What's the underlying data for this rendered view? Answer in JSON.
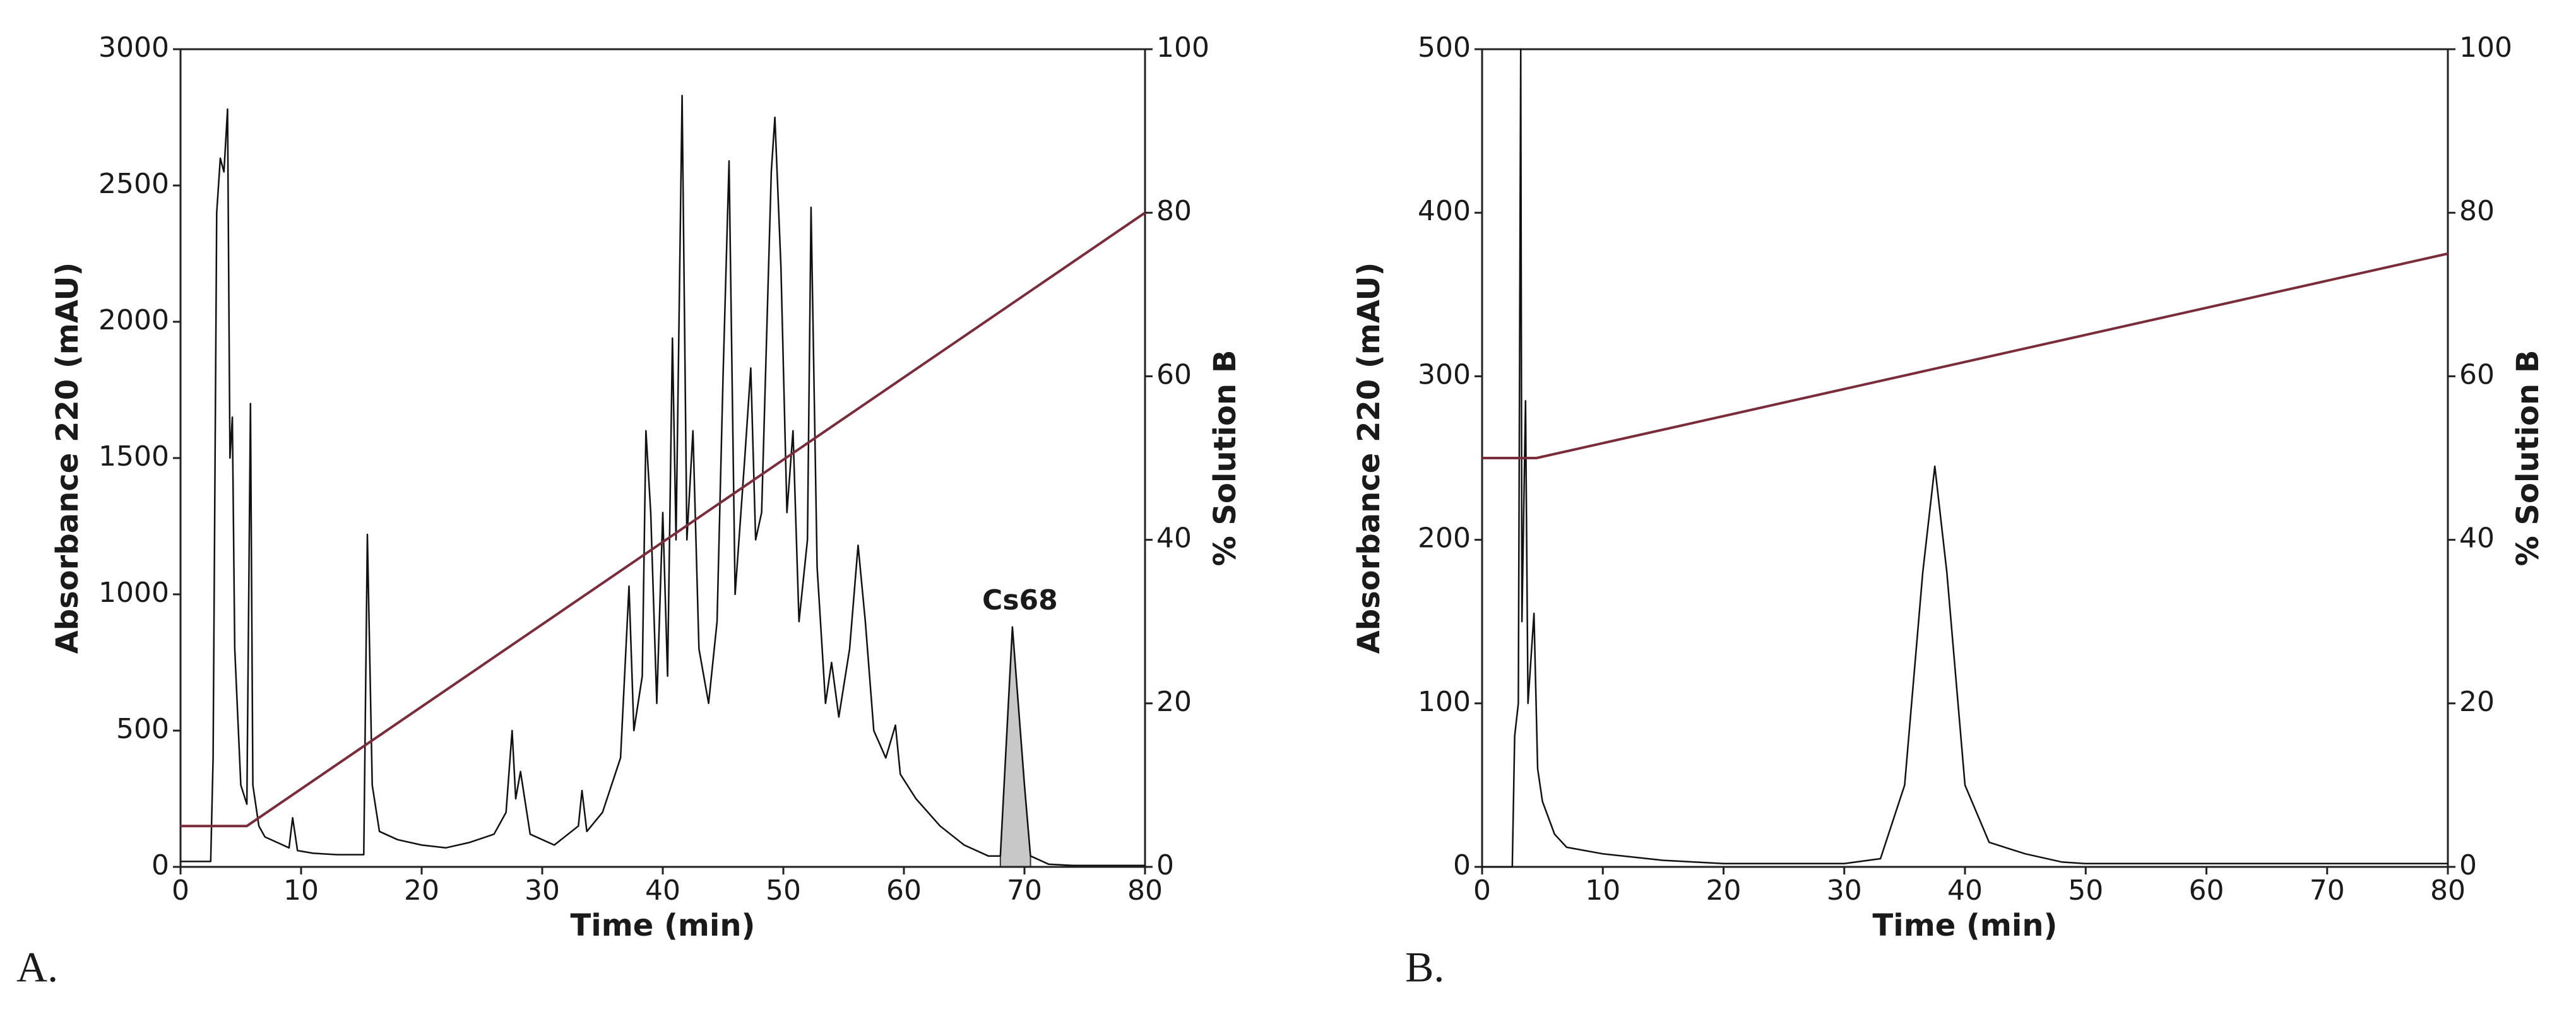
{
  "chart_data": [
    {
      "type": "line",
      "panel_label": "A.",
      "xlabel": "Time (min)",
      "ylabel": "Absorbance 220 (mAU)",
      "y2label": "% Solution B",
      "xlim": [
        0,
        80
      ],
      "xticks": [
        0,
        10,
        20,
        30,
        40,
        50,
        60,
        70,
        80
      ],
      "ylim": [
        0,
        3000
      ],
      "yticks": [
        0,
        500,
        1000,
        1500,
        2000,
        2500,
        3000
      ],
      "y2lim": [
        0,
        100
      ],
      "y2ticks": [
        0,
        20,
        40,
        60,
        80,
        100
      ],
      "peak_label": "Cs68",
      "shaded_range": [
        68,
        70.5
      ],
      "shade_color": "#c8c8c8",
      "series": [
        {
          "color": "#111111",
          "x": [
            0,
            2.5,
            2.7,
            3.0,
            3.3,
            3.6,
            3.9,
            4.1,
            4.3,
            4.5,
            5.0,
            5.5,
            5.8,
            6.0,
            6.5,
            7,
            8,
            9,
            9.3,
            9.7,
            11,
            13,
            15.2,
            15.5,
            15.9,
            16.5,
            18,
            20,
            22,
            24,
            26,
            27,
            27.5,
            27.8,
            28.2,
            29,
            31,
            33,
            33.3,
            33.7,
            35,
            36.5,
            37.2,
            37.6,
            38.3,
            38.6,
            39,
            39.5,
            40,
            40.4,
            40.8,
            41.1,
            41.6,
            42,
            42.5,
            43,
            43.8,
            44.5,
            45,
            45.5,
            46,
            46.8,
            47.3,
            47.7,
            48.2,
            49,
            49.3,
            49.8,
            50.3,
            50.8,
            51.3,
            52,
            52.3,
            52.8,
            53.5,
            54,
            54.6,
            55.5,
            56.2,
            56.8,
            57.5,
            58.5,
            59.3,
            59.7,
            61,
            63,
            65,
            67,
            68,
            69,
            70,
            70.5,
            72,
            74,
            80
          ],
          "values": [
            20,
            20,
            400,
            2400,
            2600,
            2550,
            2780,
            1500,
            1650,
            800,
            300,
            230,
            1700,
            300,
            150,
            110,
            90,
            70,
            180,
            60,
            50,
            45,
            45,
            1220,
            300,
            130,
            100,
            80,
            70,
            90,
            120,
            200,
            500,
            250,
            350,
            120,
            80,
            150,
            280,
            130,
            200,
            400,
            1030,
            500,
            700,
            1600,
            1300,
            600,
            1300,
            700,
            1940,
            1200,
            2830,
            1200,
            1600,
            800,
            600,
            900,
            1800,
            2590,
            1000,
            1500,
            1830,
            1200,
            1300,
            2550,
            2750,
            2200,
            1300,
            1600,
            900,
            1200,
            2420,
            1100,
            600,
            750,
            550,
            800,
            1180,
            900,
            500,
            400,
            520,
            340,
            250,
            150,
            80,
            40,
            40,
            880,
            300,
            40,
            10,
            5,
            5
          ]
        },
        {
          "color": "#7b2c3a",
          "axis": "y2",
          "x": [
            0,
            5.5,
            80
          ],
          "values": [
            5,
            5,
            80
          ]
        }
      ]
    },
    {
      "type": "line",
      "panel_label": "B.",
      "xlabel": "Time (min)",
      "ylabel": "Absorbance 220 (mAU)",
      "y2label": "% Solution B",
      "xlim": [
        0,
        80
      ],
      "xticks": [
        0,
        10,
        20,
        30,
        40,
        50,
        60,
        70,
        80
      ],
      "ylim": [
        0,
        500
      ],
      "yticks": [
        0,
        100,
        200,
        300,
        400,
        500
      ],
      "y2lim": [
        0,
        100
      ],
      "y2ticks": [
        0,
        20,
        40,
        60,
        80,
        100
      ],
      "series": [
        {
          "color": "#111111",
          "x": [
            0,
            2.5,
            2.7,
            3,
            3.2,
            3.3,
            3.6,
            3.8,
            4.3,
            4.6,
            5,
            5.5,
            6,
            7,
            10,
            15,
            20,
            30,
            33,
            35,
            36.5,
            37.5,
            38.5,
            40,
            42,
            45,
            48,
            50,
            60,
            70,
            80
          ],
          "values": [
            0,
            0,
            80,
            100,
            500,
            150,
            285,
            100,
            155,
            60,
            40,
            30,
            20,
            12,
            8,
            4,
            2,
            2,
            5,
            50,
            180,
            245,
            180,
            50,
            15,
            8,
            3,
            2,
            2,
            2,
            2
          ]
        },
        {
          "color": "#7b2c3a",
          "axis": "y2",
          "x": [
            0,
            4.5,
            80
          ],
          "values": [
            50,
            50,
            75
          ]
        }
      ]
    }
  ]
}
